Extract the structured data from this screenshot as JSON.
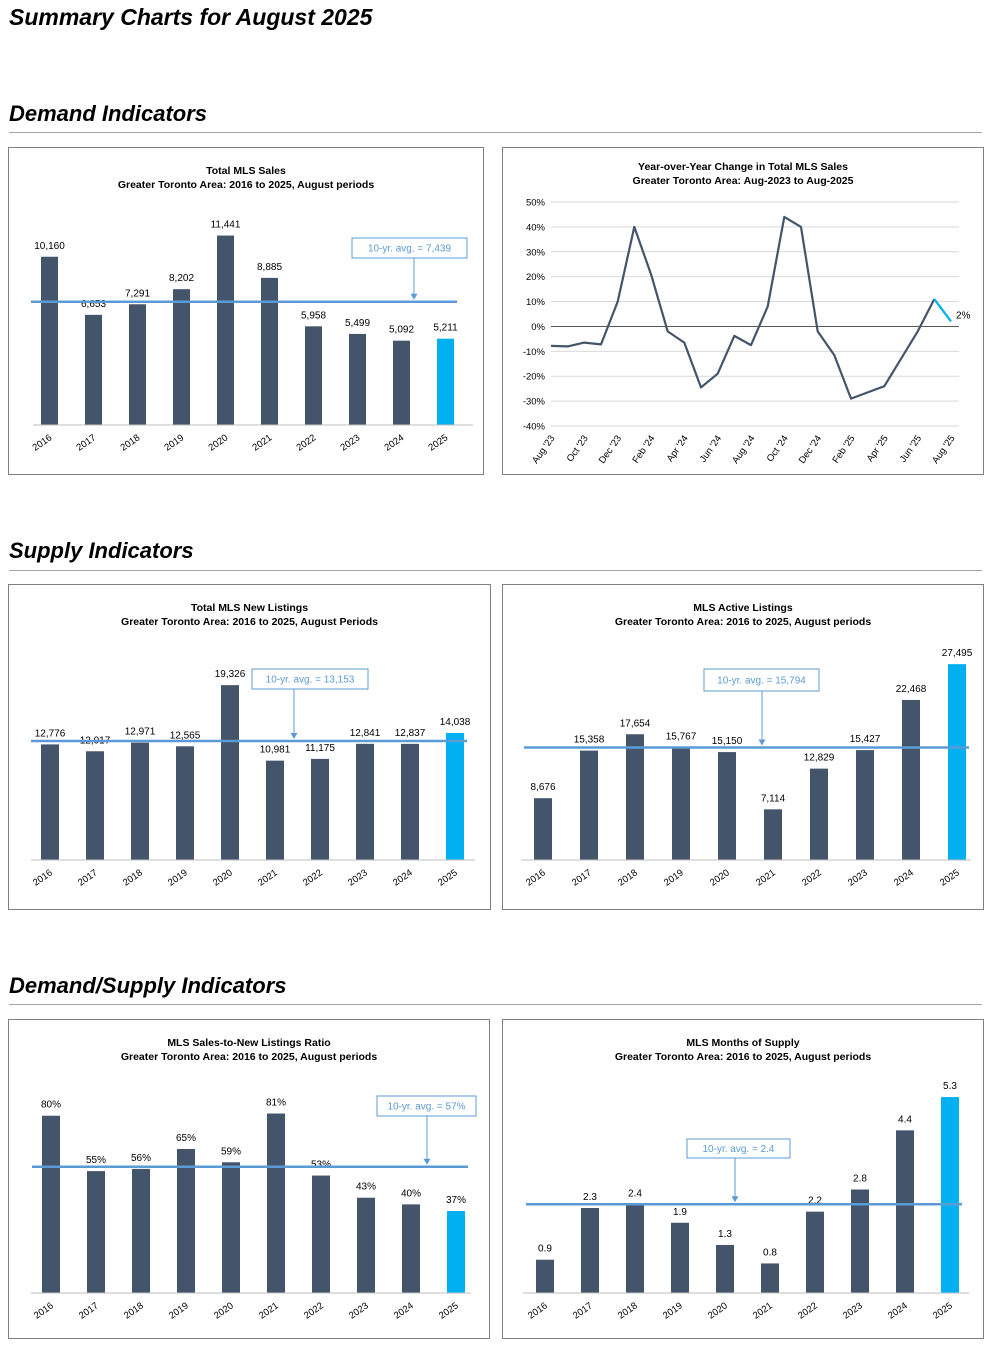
{
  "page_title": "Summary Charts for August 2025",
  "sections": [
    {
      "title": "Demand Indicators"
    },
    {
      "title": "Supply Indicators"
    },
    {
      "title": "Demand/Supply Indicators"
    }
  ],
  "colors": {
    "bar": "#44546a",
    "highlight": "#00b0f0",
    "avg_line": "#5b9bd5",
    "line": "#44546a"
  },
  "chart_data": [
    {
      "id": "total-mls-sales",
      "type": "bar",
      "title": "Total MLS Sales",
      "subtitle": "Greater Toronto Area: 2016 to 2025, August periods",
      "categories": [
        "2016",
        "2017",
        "2018",
        "2019",
        "2020",
        "2021",
        "2022",
        "2023",
        "2024",
        "2025"
      ],
      "values": [
        10160,
        6653,
        7291,
        8202,
        11441,
        8885,
        5958,
        5499,
        5092,
        5211
      ],
      "value_labels": [
        "10,160",
        "6,653",
        "7,291",
        "8,202",
        "11,441",
        "8,885",
        "5,958",
        "5,499",
        "5,092",
        "5,211"
      ],
      "average": 7439,
      "average_label": "10-yr. avg. = 7,439",
      "highlight_last": true,
      "ylim": [
        0,
        12500
      ]
    },
    {
      "id": "yoy-change-sales",
      "type": "line",
      "title": "Year-over-Year Change in Total MLS Sales",
      "subtitle": "Greater Toronto Area: Aug-2023 to Aug-2025",
      "x": [
        "Aug '23",
        "Sep '23",
        "Oct '23",
        "Nov '23",
        "Dec '23",
        "Jan '24",
        "Feb '24",
        "Mar '24",
        "Apr '24",
        "May '24",
        "Jun '24",
        "Jul '24",
        "Aug '24",
        "Sep '24",
        "Oct '24",
        "Nov '24",
        "Dec '24",
        "Jan '25",
        "Feb '25",
        "Mar '25",
        "Apr '25",
        "May '25",
        "Jun '25",
        "Jul '25",
        "Aug '25"
      ],
      "x_tick_labels": [
        "Aug '23",
        "Oct '23",
        "Dec '23",
        "Feb '24",
        "Apr '24",
        "Jun '24",
        "Aug '24",
        "Oct '24",
        "Dec '24",
        "Feb '25",
        "Apr '25",
        "Jun '25",
        "Aug '25"
      ],
      "values": [
        -7.8,
        -8,
        -6.5,
        -7.2,
        10,
        40,
        21,
        -2,
        -6.5,
        -24.5,
        -19,
        -3.8,
        -7.5,
        8,
        44,
        40,
        -2,
        -11.5,
        -29,
        -26.5,
        -24,
        -13,
        -2,
        11,
        2
      ],
      "end_label": "2%",
      "y_ticks": [
        -40,
        -30,
        -20,
        -10,
        0,
        10,
        20,
        30,
        40,
        50
      ],
      "y_tick_labels": [
        "-40%",
        "-30%",
        "-20%",
        "-10%",
        "0%",
        "10%",
        "20%",
        "30%",
        "40%",
        "50%"
      ],
      "ylim": [
        -40,
        50
      ]
    },
    {
      "id": "total-new-listings",
      "type": "bar",
      "title": "Total MLS New Listings",
      "subtitle": "Greater Toronto Area: 2016 to 2025, August Periods",
      "categories": [
        "2016",
        "2017",
        "2018",
        "2019",
        "2020",
        "2021",
        "2022",
        "2023",
        "2024",
        "2025"
      ],
      "values": [
        12776,
        12017,
        12971,
        12565,
        19326,
        10981,
        11175,
        12841,
        12837,
        14038
      ],
      "value_labels": [
        "12,776",
        "12,017",
        "12,971",
        "12,565",
        "19,326",
        "10,981",
        "11,175",
        "12,841",
        "12,837",
        "14,038"
      ],
      "average": 13153,
      "average_label": "10-yr. avg. = 13,153",
      "highlight_last": true,
      "ylim": [
        0,
        21000
      ]
    },
    {
      "id": "active-listings",
      "type": "bar",
      "title": "MLS Active Listings",
      "subtitle": "Greater Toronto Area: 2016 to 2025, August periods",
      "categories": [
        "2016",
        "2017",
        "2018",
        "2019",
        "2020",
        "2021",
        "2022",
        "2023",
        "2024",
        "2025"
      ],
      "values": [
        8676,
        15358,
        17654,
        15767,
        15150,
        7114,
        12829,
        15427,
        22468,
        27495
      ],
      "value_labels": [
        "8,676",
        "15,358",
        "17,654",
        "15,767",
        "15,150",
        "7,114",
        "12,829",
        "15,427",
        "22,468",
        "27,495"
      ],
      "average": 15794,
      "average_label": "10-yr. avg. = 15,794",
      "highlight_last": true,
      "ylim": [
        0,
        28500
      ]
    },
    {
      "id": "sales-to-new-listings",
      "type": "bar",
      "title": "MLS Sales-to-New Listings Ratio",
      "subtitle": "Greater Toronto Area: 2016 to 2025, August periods",
      "categories": [
        "2016",
        "2017",
        "2018",
        "2019",
        "2020",
        "2021",
        "2022",
        "2023",
        "2024",
        "2025"
      ],
      "values": [
        80,
        55,
        56,
        65,
        59,
        81,
        53,
        43,
        40,
        37
      ],
      "value_labels": [
        "80%",
        "55%",
        "56%",
        "65%",
        "59%",
        "81%",
        "53%",
        "43%",
        "40%",
        "37%"
      ],
      "average": 57,
      "average_label": "10-yr. avg. = 57%",
      "highlight_last": true,
      "ylim": [
        0,
        88
      ]
    },
    {
      "id": "months-of-supply",
      "type": "bar",
      "title": "MLS Months of Supply",
      "subtitle": "Greater Toronto Area: 2016 to 2025, August periods",
      "categories": [
        "2016",
        "2017",
        "2018",
        "2019",
        "2020",
        "2021",
        "2022",
        "2023",
        "2024",
        "2025"
      ],
      "values": [
        0.9,
        2.3,
        2.4,
        1.9,
        1.3,
        0.8,
        2.2,
        2.8,
        4.4,
        5.3
      ],
      "value_labels": [
        "0.9",
        "2.3",
        "2.4",
        "1.9",
        "1.3",
        "0.8",
        "2.2",
        "2.8",
        "4.4",
        "5.3"
      ],
      "average": 2.4,
      "average_label": "10-yr. avg. = 2.4",
      "highlight_last": true,
      "ylim": [
        0,
        5.6
      ]
    }
  ]
}
